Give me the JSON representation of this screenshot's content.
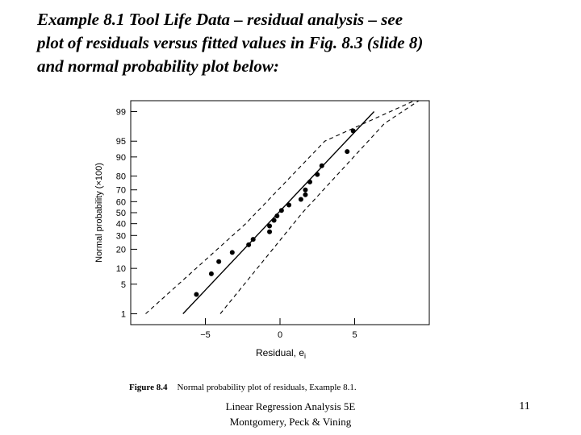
{
  "slide": {
    "title_lines": [
      "Example 8.1 Tool Life Data – residual analysis – see",
      "plot of residuals versus  fitted values in Fig. 8.3 (slide 8)",
      "and normal probability plot below:"
    ],
    "footer_lines": [
      "Linear Regression Analysis 5E",
      "Montgomery, Peck & Vining"
    ],
    "page_number": "11"
  },
  "chart_data": {
    "type": "scatter",
    "caption_label": "Figure 8.4",
    "caption_text": "Normal probability plot of residuals, Example 8.1.",
    "xlabel": "Residual, e",
    "xlabel_sub": "i",
    "ylabel": "Normal probability (×100)",
    "xlim": [
      -10,
      10
    ],
    "x_ticks": [
      -5,
      0,
      5
    ],
    "x_tick_labels": [
      "−5",
      "0",
      "5"
    ],
    "y_scale": "normal-probability",
    "ylim": [
      0.5,
      99.5
    ],
    "y_ticks": [
      1,
      5,
      10,
      20,
      30,
      40,
      50,
      60,
      70,
      80,
      90,
      95,
      99
    ],
    "grid": false,
    "fit_line": [
      [
        -6.5,
        1
      ],
      [
        6.3,
        99
      ]
    ],
    "band_upper": [
      [
        -9.0,
        1
      ],
      [
        -2.3,
        40
      ],
      [
        3.0,
        95
      ],
      [
        9.0,
        99.5
      ]
    ],
    "band_lower": [
      [
        -4.0,
        1
      ],
      [
        1.5,
        50
      ],
      [
        7.0,
        98
      ],
      [
        9.3,
        99.5
      ]
    ],
    "points": [
      [
        -5.6,
        3
      ],
      [
        -4.6,
        8
      ],
      [
        -4.1,
        13
      ],
      [
        -3.2,
        18
      ],
      [
        -2.1,
        23
      ],
      [
        -1.8,
        27
      ],
      [
        -0.7,
        33
      ],
      [
        -0.7,
        38
      ],
      [
        -0.4,
        43
      ],
      [
        -0.2,
        47
      ],
      [
        0.1,
        52
      ],
      [
        0.6,
        57
      ],
      [
        1.4,
        62
      ],
      [
        1.7,
        66
      ],
      [
        1.7,
        70
      ],
      [
        2.0,
        76
      ],
      [
        2.5,
        81
      ],
      [
        2.8,
        86
      ],
      [
        4.5,
        92
      ],
      [
        4.9,
        97
      ]
    ]
  }
}
